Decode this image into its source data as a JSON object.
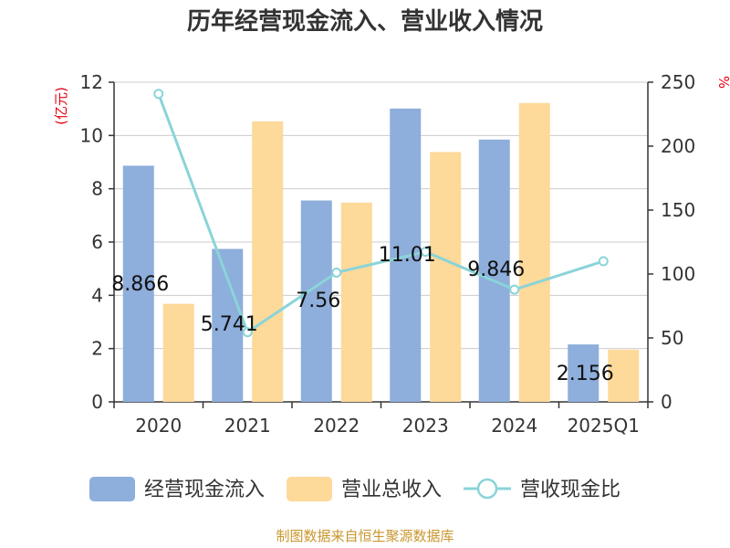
{
  "chart_data": {
    "type": "bar",
    "title": "历年经营现金流入、营业收入情况",
    "left_unit": "(亿元)",
    "right_unit": "%",
    "categories": [
      "2020",
      "2021",
      "2022",
      "2023",
      "2024",
      "2025Q1"
    ],
    "left_axis": {
      "min": 0,
      "max": 12,
      "ticks": [
        0,
        2,
        4,
        6,
        8,
        10,
        12
      ]
    },
    "right_axis": {
      "min": 0,
      "max": 250,
      "ticks": [
        0,
        50,
        100,
        150,
        200,
        250
      ]
    },
    "series": [
      {
        "name": "经营现金流入",
        "type": "bar",
        "axis": "left",
        "color": "#8eaedb",
        "values": [
          8.866,
          5.741,
          7.56,
          11.01,
          9.846,
          2.156
        ],
        "labels": [
          "8.866",
          "5.741",
          "7.56",
          "11.01",
          "9.846",
          "2.156"
        ]
      },
      {
        "name": "营业总收入",
        "type": "bar",
        "axis": "left",
        "color": "#fdd99a",
        "values": [
          3.68,
          10.53,
          7.48,
          9.38,
          11.22,
          1.96
        ]
      },
      {
        "name": "营收现金比",
        "type": "line",
        "axis": "right",
        "color": "#8ad4d8",
        "values": [
          240.9,
          54.5,
          101.1,
          117.4,
          87.8,
          110.0
        ]
      }
    ],
    "grid": true,
    "legend_position": "bottom"
  },
  "source_text": "制图数据来自恒生聚源数据库"
}
